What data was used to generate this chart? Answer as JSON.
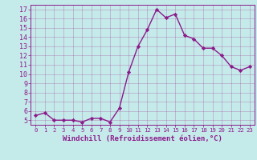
{
  "x": [
    0,
    1,
    2,
    3,
    4,
    5,
    6,
    7,
    8,
    9,
    10,
    11,
    12,
    13,
    14,
    15,
    16,
    17,
    18,
    19,
    20,
    21,
    22,
    23
  ],
  "y": [
    5.5,
    5.8,
    5.0,
    5.0,
    5.0,
    4.8,
    5.2,
    5.2,
    4.8,
    6.3,
    10.2,
    13.0,
    14.8,
    17.0,
    16.1,
    16.5,
    14.2,
    13.8,
    12.8,
    12.8,
    12.0,
    10.8,
    10.4,
    10.8
  ],
  "line_color": "#8b1a8b",
  "marker": "D",
  "marker_size": 2.2,
  "line_width": 1.0,
  "bg_color": "#c5eaea",
  "grid_color": "#9b2d8e",
  "xlabel": "Windchill (Refroidissement éolien,°C)",
  "xlabel_fontsize": 6.5,
  "xlim": [
    -0.5,
    23.5
  ],
  "ylim": [
    4.5,
    17.5
  ],
  "yticks": [
    5,
    6,
    7,
    8,
    9,
    10,
    11,
    12,
    13,
    14,
    15,
    16,
    17
  ],
  "xticks": [
    0,
    1,
    2,
    3,
    4,
    5,
    6,
    7,
    8,
    9,
    10,
    11,
    12,
    13,
    14,
    15,
    16,
    17,
    18,
    19,
    20,
    21,
    22,
    23
  ],
  "ytick_fontsize": 6.0,
  "xtick_fontsize": 5.2,
  "tick_color": "#8b1a8b",
  "spine_color": "#8b1a8b"
}
